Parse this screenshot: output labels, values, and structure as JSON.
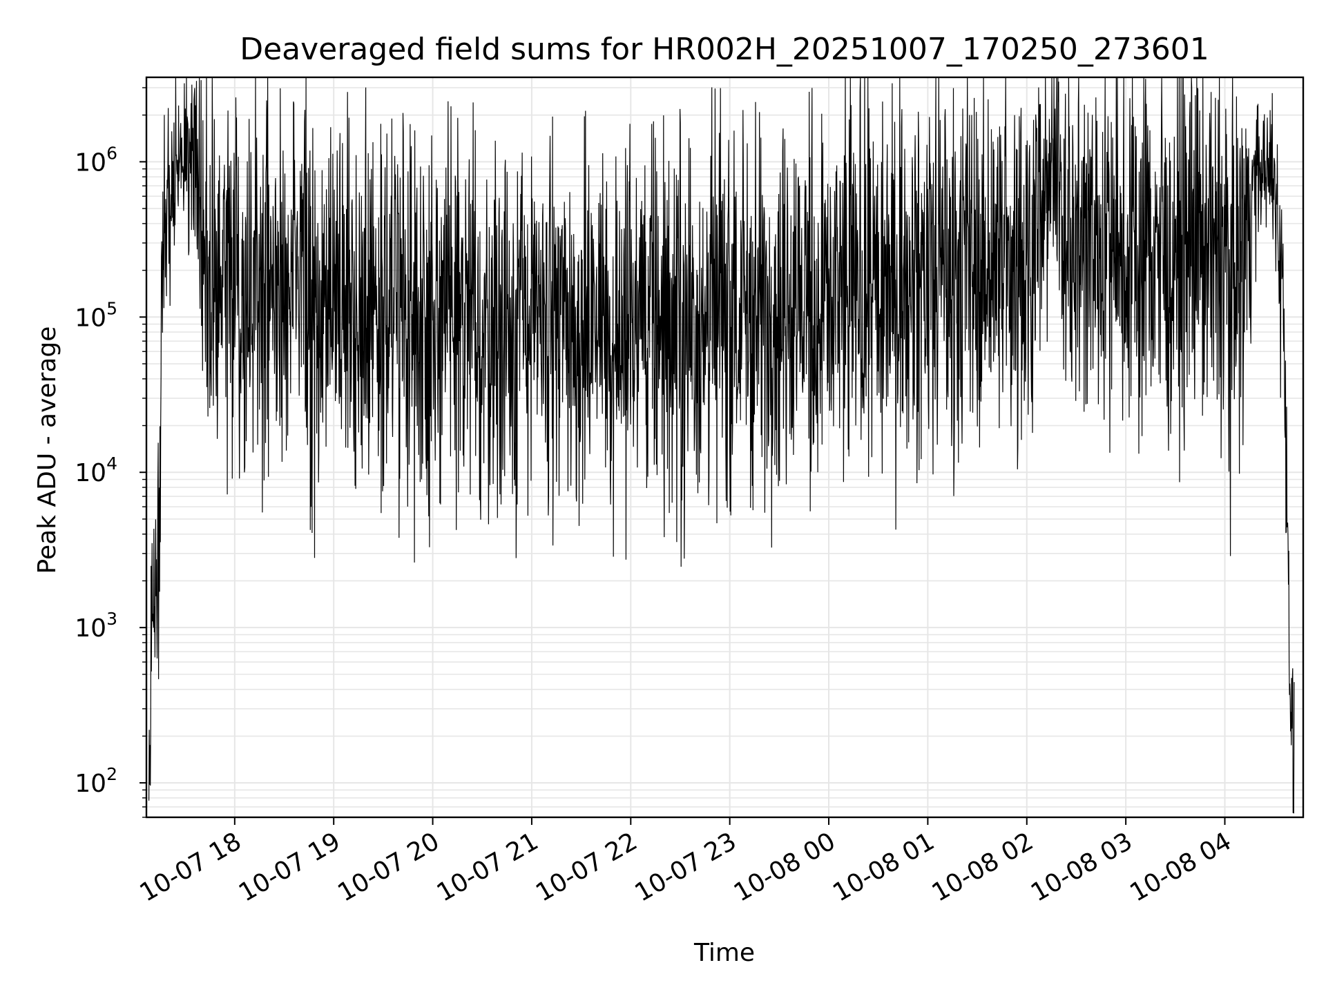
{
  "chart_data": {
    "type": "line",
    "title": "Deaveraged field sums for HR002H_20251007_170250_273601",
    "xlabel": "Time",
    "ylabel": "Peak ADU - average",
    "yscale": "log",
    "ylim": [
      60,
      3500000
    ],
    "xlim": [
      "2025-10-07 17:06:30",
      "2025-10-08 04:47:30"
    ],
    "grid": true,
    "legend": false,
    "line_color": "#000000",
    "grid_color": "#e6e6e6",
    "x_ticks": [
      "2025-10-07 18:00",
      "2025-10-07 19:00",
      "2025-10-07 20:00",
      "2025-10-07 21:00",
      "2025-10-07 22:00",
      "2025-10-07 23:00",
      "2025-10-08 00:00",
      "2025-10-08 01:00",
      "2025-10-08 02:00",
      "2025-10-08 03:00",
      "2025-10-08 04:00"
    ],
    "x_tick_labels": [
      "10-07 18",
      "10-07 19",
      "10-07 20",
      "10-07 21",
      "10-07 22",
      "10-07 23",
      "10-08 00",
      "10-08 01",
      "10-08 02",
      "10-08 03",
      "10-08 04"
    ],
    "y_ticks": [
      100,
      1000,
      10000,
      100000,
      1000000
    ],
    "y_tick_labels": [
      {
        "base": "10",
        "exp": "2"
      },
      {
        "base": "10",
        "exp": "3"
      },
      {
        "base": "10",
        "exp": "4"
      },
      {
        "base": "10",
        "exp": "5"
      },
      {
        "base": "10",
        "exp": "6"
      }
    ],
    "series": [
      {
        "x": [
          "2025-10-07 17:08",
          "2025-10-07 17:10",
          "2025-10-07 17:12",
          "2025-10-07 17:14",
          "2025-10-07 17:16",
          "2025-10-07 17:20",
          "2025-10-07 17:25",
          "2025-10-07 17:30",
          "2025-10-07 17:35",
          "2025-10-07 17:40",
          "2025-10-07 17:45",
          "2025-10-07 17:50",
          "2025-10-07 18:00",
          "2025-10-07 18:15",
          "2025-10-07 18:30",
          "2025-10-07 18:45",
          "2025-10-07 19:00",
          "2025-10-07 19:30",
          "2025-10-07 20:00",
          "2025-10-07 20:30",
          "2025-10-07 21:00",
          "2025-10-07 21:30",
          "2025-10-07 22:00",
          "2025-10-07 22:30",
          "2025-10-07 23:00",
          "2025-10-07 23:30",
          "2025-10-08 00:00",
          "2025-10-08 00:30",
          "2025-10-08 01:00",
          "2025-10-08 01:30",
          "2025-10-08 02:00",
          "2025-10-08 02:15",
          "2025-10-08 02:30",
          "2025-10-08 03:00",
          "2025-10-08 03:30",
          "2025-10-08 03:45",
          "2025-10-08 04:00",
          "2025-10-08 04:10",
          "2025-10-08 04:15",
          "2025-10-08 04:20",
          "2025-10-08 04:25",
          "2025-10-08 04:30",
          "2025-10-08 04:35",
          "2025-10-08 04:38",
          "2025-10-08 04:40",
          "2025-10-08 04:42"
        ],
        "y": [
          80,
          2000,
          900,
          5000,
          150000,
          600000,
          950000,
          1000000,
          800000,
          400000,
          260000,
          200000,
          170000,
          150000,
          140000,
          130000,
          130000,
          120000,
          100000,
          95000,
          90000,
          92000,
          90000,
          100000,
          110000,
          125000,
          140000,
          170000,
          200000,
          220000,
          230000,
          900000,
          320000,
          290000,
          280000,
          290000,
          250000,
          230000,
          500000,
          900000,
          900000,
          700000,
          200000,
          5000,
          300,
          80
        ],
        "noise_band": [
          0.25,
          0.6,
          0.5,
          0.5,
          0.5,
          0.35,
          0.3,
          0.3,
          0.3,
          0.6,
          0.6,
          0.6,
          0.6,
          0.6,
          0.6,
          0.6,
          0.6,
          0.6,
          0.6,
          0.6,
          0.6,
          0.6,
          0.6,
          0.6,
          0.6,
          0.6,
          0.6,
          0.6,
          0.6,
          0.6,
          0.6,
          0.4,
          0.6,
          0.6,
          0.6,
          0.6,
          0.6,
          0.6,
          0.4,
          0.2,
          0.2,
          0.3,
          0.3,
          0.3,
          0.3,
          0.3
        ]
      }
    ]
  }
}
